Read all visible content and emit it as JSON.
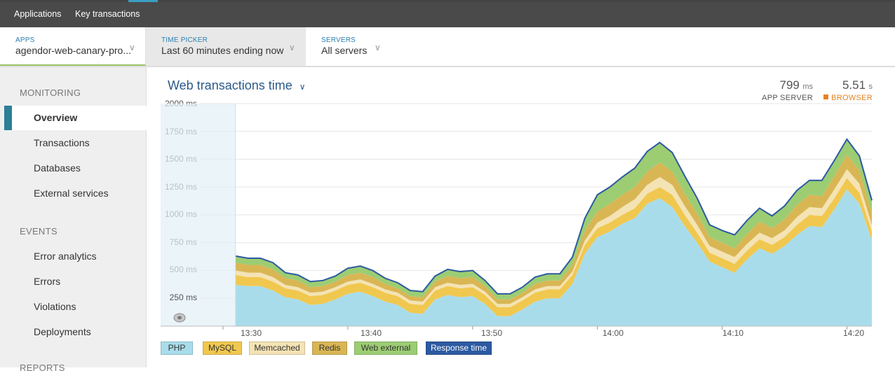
{
  "topnav": {
    "items": [
      "Applications",
      "Key transactions"
    ]
  },
  "selectors": {
    "apps": {
      "label": "APPS",
      "value": "agendor-web-canary-pro..."
    },
    "time": {
      "label": "TIME PICKER",
      "value": "Last 60 minutes ending now"
    },
    "servers": {
      "label": "SERVERS",
      "value": "All servers"
    }
  },
  "sidebar": {
    "monitoring_heading": "MONITORING",
    "monitoring_items": [
      "Overview",
      "Transactions",
      "Databases",
      "External services"
    ],
    "events_heading": "EVENTS",
    "events_items": [
      "Error analytics",
      "Errors",
      "Violations",
      "Deployments"
    ],
    "reports_heading": "REPORTS",
    "active_item": "Overview"
  },
  "chart_header": {
    "title": "Web transactions time",
    "app_server": {
      "value": "799",
      "unit": "ms",
      "caption": "APP SERVER"
    },
    "browser": {
      "value": "5.51",
      "unit": "s",
      "caption": "BROWSER",
      "color": "#e6821e"
    }
  },
  "chart_data": {
    "type": "area",
    "stacked": true,
    "title": "Web transactions time",
    "y_unit": "ms",
    "ylim": [
      0,
      2000
    ],
    "y_ticks": [
      "250 ms",
      "500 ms",
      "750 ms",
      "1000 ms",
      "1250 ms",
      "1500 ms",
      "1750 ms",
      "2000 ms"
    ],
    "y_tick_values": [
      250,
      500,
      750,
      1000,
      1250,
      1500,
      1750,
      2000
    ],
    "x_ticks": [
      "13:30",
      "13:40",
      "13:50",
      "14:00",
      "14:10",
      "14:20"
    ],
    "x_tick_minutes": [
      30,
      40,
      50,
      60,
      70,
      80
    ],
    "x_minutes": [
      25,
      26,
      27,
      28,
      29,
      30,
      31,
      32,
      33,
      34,
      35,
      36,
      37,
      38,
      39,
      40,
      41,
      42,
      43,
      44,
      45,
      46,
      47,
      48,
      49,
      50,
      51,
      52,
      53,
      54,
      55,
      56,
      57,
      58,
      59,
      60,
      61,
      62,
      63,
      64,
      65,
      66,
      67,
      68,
      69,
      70,
      71,
      72,
      73,
      74,
      75,
      76,
      77,
      78,
      79,
      80,
      81,
      82
    ],
    "series": [
      {
        "name": "PHP",
        "color": "#a9dceb",
        "values": [
          370,
          360,
          360,
          320,
          260,
          240,
          190,
          200,
          240,
          290,
          310,
          270,
          220,
          190,
          120,
          110,
          240,
          280,
          260,
          270,
          200,
          90,
          90,
          150,
          220,
          250,
          250,
          380,
          650,
          800,
          850,
          920,
          970,
          1100,
          1150,
          1070,
          900,
          750,
          580,
          530,
          480,
          600,
          700,
          650,
          720,
          820,
          900,
          890,
          1050,
          1230,
          1100,
          770
        ]
      },
      {
        "name": "MySQL",
        "color": "#f0c84f",
        "values": [
          90,
          80,
          80,
          80,
          80,
          80,
          80,
          80,
          80,
          80,
          80,
          80,
          80,
          80,
          80,
          80,
          80,
          80,
          80,
          80,
          80,
          80,
          80,
          80,
          80,
          80,
          80,
          80,
          80,
          80,
          80,
          80,
          90,
          90,
          100,
          110,
          100,
          90,
          80,
          80,
          80,
          80,
          80,
          80,
          80,
          90,
          100,
          100,
          100,
          100,
          100,
          80
        ]
      },
      {
        "name": "Memcached",
        "color": "#f4e3b4",
        "values": [
          40,
          40,
          40,
          40,
          30,
          30,
          30,
          30,
          30,
          30,
          30,
          30,
          30,
          30,
          30,
          30,
          30,
          30,
          30,
          30,
          30,
          30,
          30,
          30,
          30,
          30,
          30,
          30,
          40,
          50,
          60,
          70,
          80,
          80,
          90,
          90,
          80,
          70,
          60,
          60,
          60,
          60,
          60,
          60,
          60,
          70,
          70,
          70,
          80,
          80,
          80,
          60
        ]
      },
      {
        "name": "Redis",
        "color": "#d9b654",
        "values": [
          70,
          70,
          70,
          70,
          60,
          60,
          50,
          50,
          50,
          60,
          60,
          60,
          50,
          40,
          40,
          40,
          50,
          60,
          60,
          60,
          50,
          40,
          40,
          40,
          50,
          50,
          50,
          60,
          90,
          100,
          110,
          110,
          110,
          120,
          130,
          120,
          110,
          100,
          80,
          80,
          80,
          90,
          100,
          90,
          100,
          110,
          110,
          110,
          120,
          130,
          120,
          100
        ]
      },
      {
        "name": "Web external",
        "color": "#9ccd73",
        "values": [
          60,
          60,
          60,
          60,
          50,
          50,
          50,
          50,
          50,
          60,
          60,
          60,
          50,
          50,
          50,
          50,
          50,
          60,
          60,
          60,
          50,
          50,
          50,
          50,
          60,
          60,
          60,
          70,
          110,
          150,
          150,
          160,
          170,
          180,
          180,
          170,
          160,
          140,
          110,
          110,
          120,
          120,
          120,
          120,
          120,
          130,
          130,
          140,
          140,
          140,
          130,
          120
        ]
      }
    ],
    "x_series_start": 31,
    "response_time": {
      "name": "Response time",
      "color": "#2c5aa0",
      "values": [
        630,
        610,
        610,
        570,
        480,
        460,
        400,
        410,
        450,
        520,
        540,
        500,
        430,
        390,
        320,
        310,
        450,
        510,
        490,
        500,
        410,
        290,
        290,
        350,
        440,
        470,
        470,
        620,
        970,
        1180,
        1250,
        1340,
        1420,
        1570,
        1650,
        1560,
        1350,
        1150,
        910,
        860,
        820,
        950,
        1060,
        990,
        1080,
        1220,
        1310,
        1310,
        1490,
        1680,
        1530,
        1130
      ]
    },
    "legend": [
      {
        "label": "PHP",
        "color": "#a9dceb"
      },
      {
        "label": "MySQL",
        "color": "#f0c84f"
      },
      {
        "label": "Memcached",
        "color": "#f4e3b4"
      },
      {
        "label": "Redis",
        "color": "#d9b654"
      },
      {
        "label": "Web external",
        "color": "#9ccd73"
      },
      {
        "label": "Response time",
        "color": "#2c5aa0"
      }
    ],
    "grid": true
  }
}
